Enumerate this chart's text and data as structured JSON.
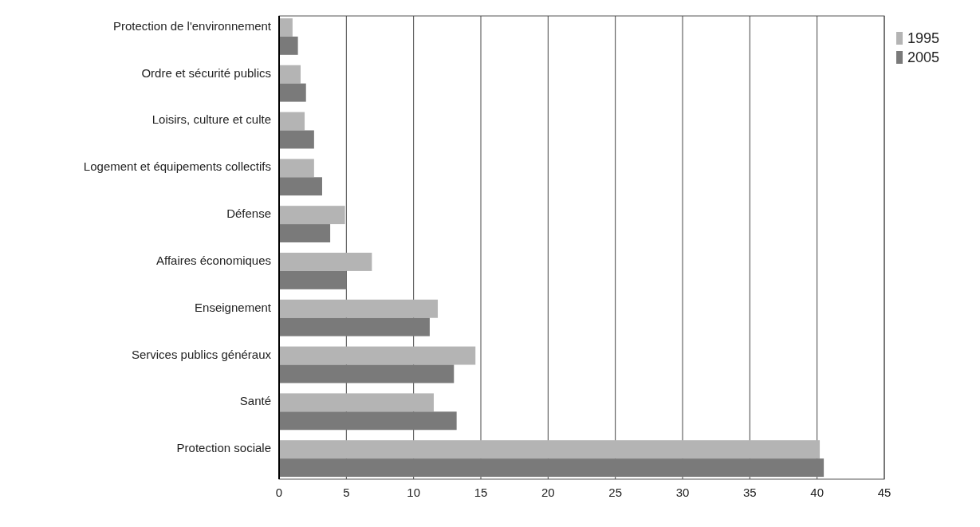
{
  "chart_data": {
    "type": "bar",
    "orientation": "horizontal",
    "categories": [
      "Protection de l'environnement",
      "Ordre et sécurité publics",
      "Loisirs, culture et culte",
      "Logement et équipements collectifs",
      "Défense",
      "Affaires économiques",
      "Enseignement",
      "Services publics généraux",
      "Santé",
      "Protection sociale"
    ],
    "series": [
      {
        "name": "1995",
        "color": "#b4b4b4",
        "values": [
          1.0,
          1.6,
          1.9,
          2.6,
          4.9,
          6.9,
          11.8,
          14.6,
          11.5,
          40.2
        ]
      },
      {
        "name": "2005",
        "color": "#7a7a7a",
        "values": [
          1.4,
          2.0,
          2.6,
          3.2,
          3.8,
          5.0,
          11.2,
          13.0,
          13.2,
          40.5
        ]
      }
    ],
    "xlim": [
      0,
      45
    ],
    "xticks": [
      0,
      5,
      10,
      15,
      20,
      25,
      30,
      35,
      40,
      45
    ],
    "grid": "x",
    "legend": "top right"
  }
}
